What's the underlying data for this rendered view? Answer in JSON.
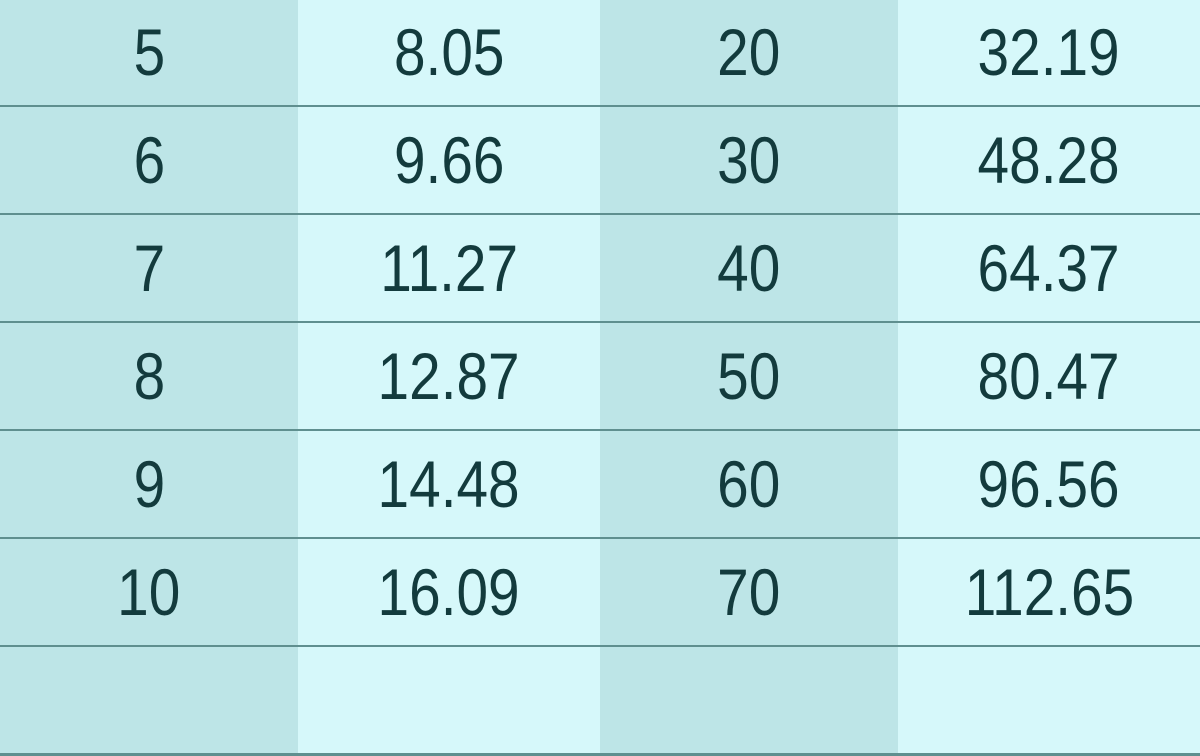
{
  "chart_data": {
    "type": "table",
    "rows": [
      [
        "5",
        "8.05",
        "20",
        "32.19"
      ],
      [
        "6",
        "9.66",
        "30",
        "48.28"
      ],
      [
        "7",
        "11.27",
        "40",
        "64.37"
      ],
      [
        "8",
        "12.87",
        "50",
        "80.47"
      ],
      [
        "9",
        "14.48",
        "60",
        "96.56"
      ],
      [
        "10",
        "16.09",
        "70",
        "112.65"
      ],
      [
        "",
        "",
        "",
        ""
      ]
    ],
    "colors": {
      "shaded_column": "#bde5e7",
      "light_column": "#d6f8fa",
      "row_divider": "#5f8f8f",
      "text": "#133b3d"
    }
  }
}
